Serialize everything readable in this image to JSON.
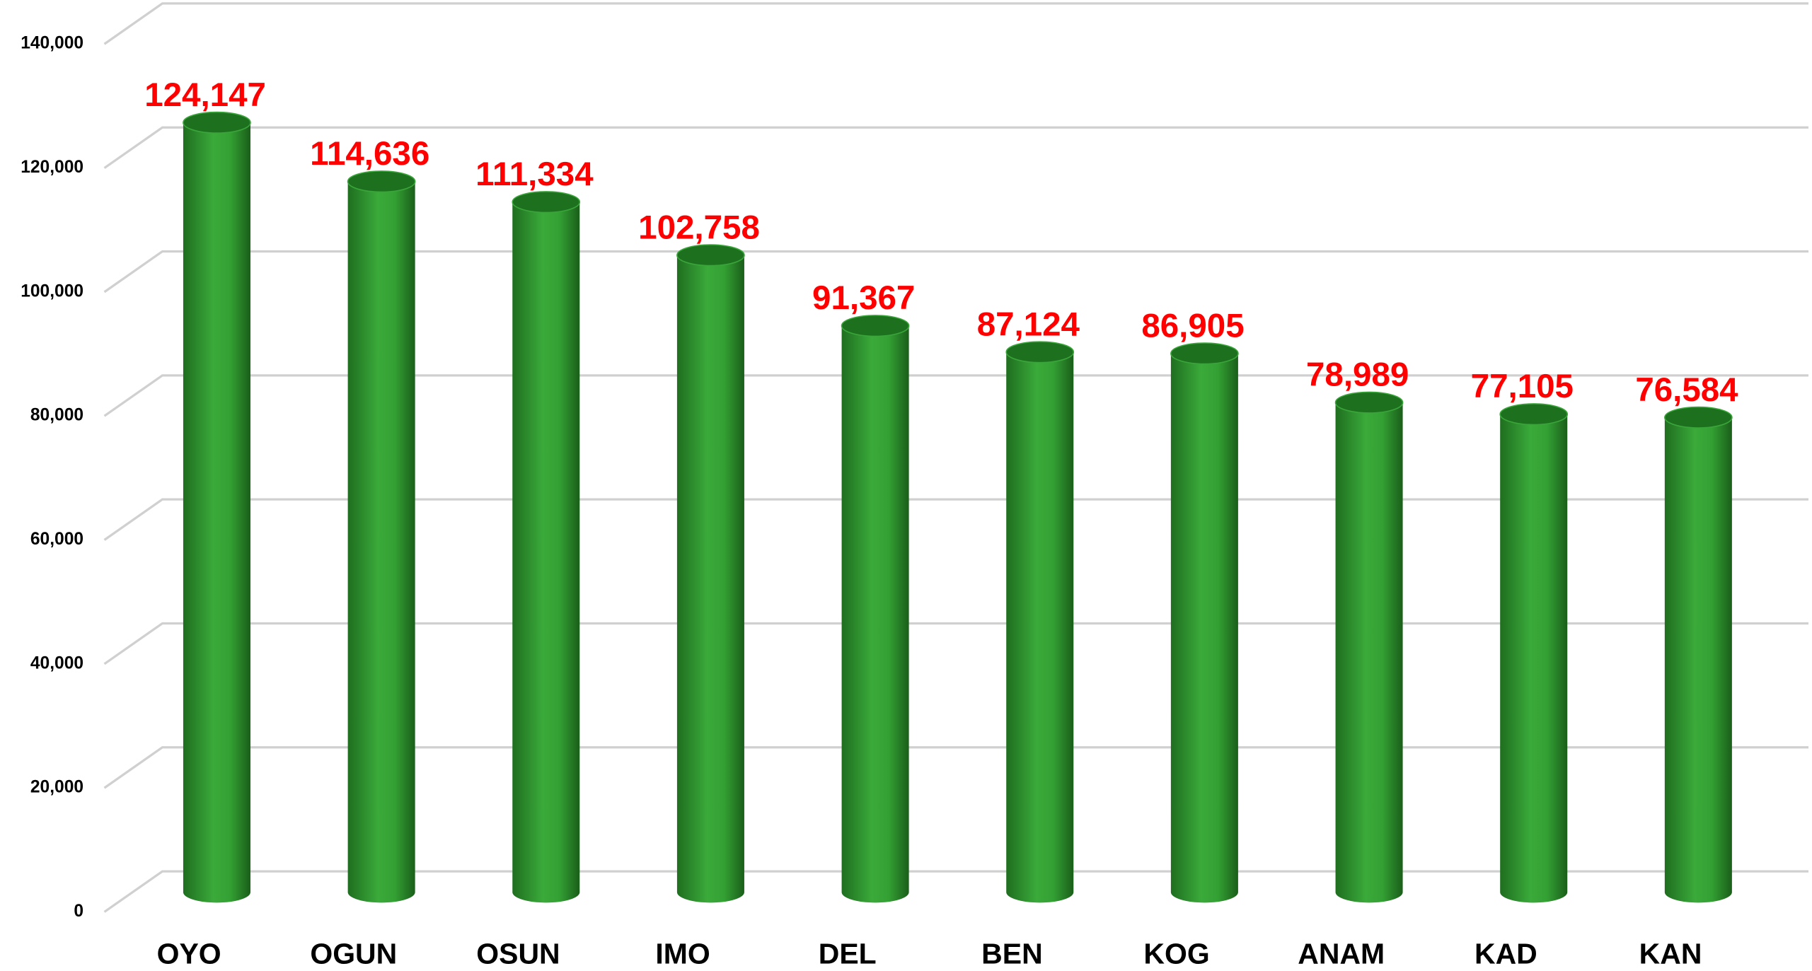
{
  "chart_data": {
    "type": "bar",
    "categories": [
      "OYO",
      "OGUN",
      "OSUN",
      "IMO",
      "DEL",
      "BEN",
      "KOG",
      "ANAM",
      "KAD",
      "KAN"
    ],
    "values": [
      124147,
      114636,
      111334,
      102758,
      91367,
      87124,
      86905,
      78989,
      77105,
      76584
    ],
    "value_labels": [
      "124,147",
      "114,636",
      "111,334",
      "102,758",
      "91,367",
      "87,124",
      "86,905",
      "78,989",
      "77,105",
      "76,584"
    ],
    "color": "#2e9a2e",
    "value_label_color": "#ff0000",
    "ylim": [
      0,
      140000
    ],
    "yticks": [
      0,
      {
        "value": 20000,
        "label": "20,000"
      },
      {
        "value": 40000,
        "label": "40,000"
      },
      {
        "value": 60000,
        "label": "60,000"
      },
      {
        "value": 80000,
        "label": "80,000"
      },
      {
        "value": 100000,
        "label": "100,000"
      },
      {
        "value": 120000,
        "label": "120,000"
      },
      {
        "value": 140000,
        "label": "140,000"
      }
    ],
    "grid": true
  }
}
